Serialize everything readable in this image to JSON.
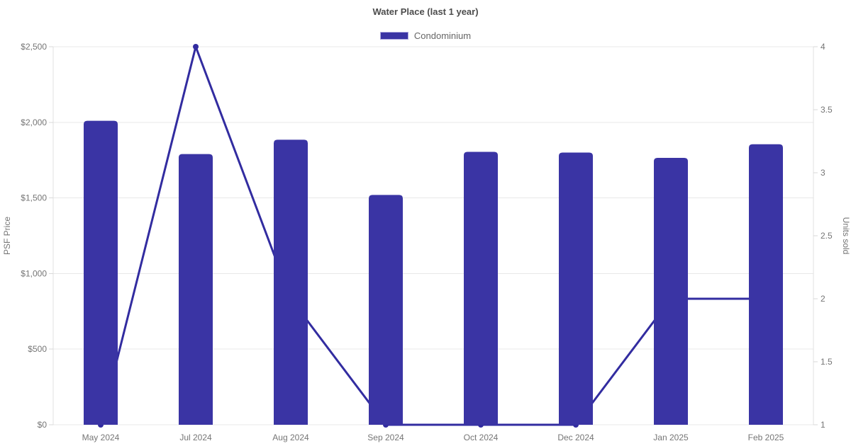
{
  "header": {
    "title": "Water Place (last 1 year)",
    "legend": [
      {
        "label": "Condominium",
        "color": "#3a34a4"
      }
    ]
  },
  "chart_data": {
    "type": "bar",
    "title": "Water Place (last 1 year)",
    "legend_position": "top",
    "grid": true,
    "categories": [
      "May 2024",
      "Jul 2024",
      "Aug 2024",
      "Sep 2024",
      "Oct 2024",
      "Dec 2024",
      "Jan 2025",
      "Feb 2025"
    ],
    "series": [
      {
        "name": "Condominium",
        "type": "bar",
        "yaxis": "left",
        "values": [
          2010,
          1790,
          1885,
          1520,
          1805,
          1800,
          1765,
          1855
        ]
      },
      {
        "name": "Units sold",
        "type": "line",
        "yaxis": "right",
        "values": [
          1,
          4,
          2,
          1,
          1,
          1,
          2,
          2
        ]
      }
    ],
    "xlabel": "",
    "ylabel": "PSF Price",
    "ylabel_right": "Units sold",
    "ylim_left": [
      0,
      2500
    ],
    "ylim_right": [
      1,
      4
    ],
    "yticks_left": {
      "values": [
        0,
        500,
        1000,
        1500,
        2000,
        2500
      ],
      "labels": [
        "$0",
        "$500",
        "$1,000",
        "$1,500",
        "$2,000",
        "$2,500"
      ]
    },
    "yticks_right": {
      "values": [
        1,
        1.5,
        2,
        2.5,
        3,
        3.5,
        4
      ],
      "labels": [
        "1",
        "1.5",
        "2",
        "2.5",
        "3",
        "3.5",
        "4"
      ]
    }
  },
  "colors": {
    "bar": "#3a34a4",
    "line": "#322ca0",
    "grid": "#e8e8e8",
    "axis_line": "#e0e0e0",
    "tick": "#d9d9d9",
    "axis_text": "#757575",
    "title_text": "#4c4c4c",
    "legend_text": "#666666",
    "background": "#ffffff"
  }
}
